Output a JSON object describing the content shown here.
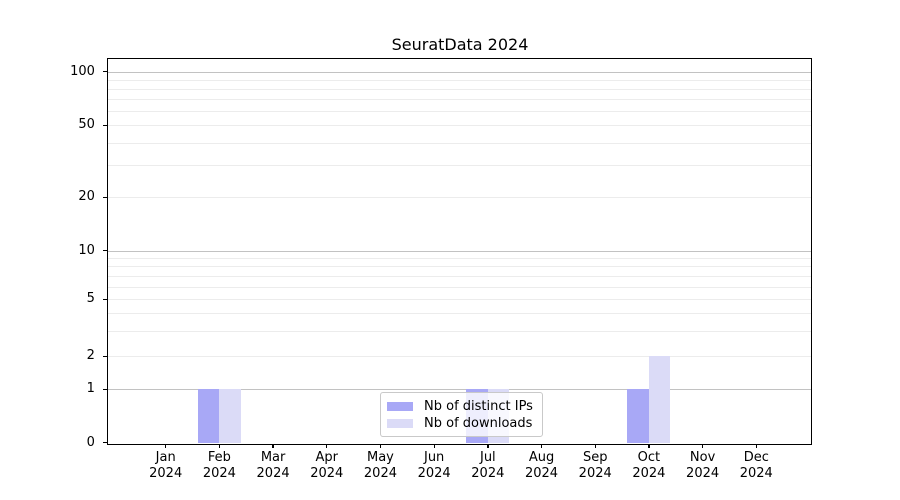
{
  "chart_data": {
    "type": "bar",
    "title": "SeuratData 2024",
    "months": [
      "Jan",
      "Feb",
      "Mar",
      "Apr",
      "May",
      "Jun",
      "Jul",
      "Aug",
      "Sep",
      "Oct",
      "Nov",
      "Dec"
    ],
    "year": "2024",
    "series": [
      {
        "name": "Nb of distinct IPs",
        "color": "#a8a8f6",
        "values": [
          0,
          1,
          0,
          0,
          0,
          0,
          1,
          0,
          0,
          1,
          0,
          0
        ]
      },
      {
        "name": "Nb of downloads",
        "color": "#dbdbf7",
        "values": [
          0,
          1,
          0,
          0,
          0,
          0,
          1,
          0,
          0,
          2,
          0,
          0
        ]
      }
    ],
    "xlabel": "",
    "ylabel": "",
    "yscale": "symlog",
    "ylim": [
      0,
      130
    ],
    "y_ticks": [
      0,
      1,
      2,
      5,
      10,
      20,
      50,
      100
    ],
    "y_tick_labels": [
      "0",
      "1",
      "2",
      "5",
      "10",
      "20",
      "50",
      "100"
    ],
    "y_major_gridlines": [
      1,
      10,
      100
    ],
    "y_minor_gridlines": [
      2,
      3,
      4,
      5,
      6,
      7,
      8,
      9,
      20,
      30,
      40,
      50,
      60,
      70,
      80,
      90
    ],
    "grid": "horizontal",
    "legend_position": "lower center",
    "colors": {
      "background": "#ffffff",
      "major_grid": "#c2c2c2",
      "minor_grid": "#ececec",
      "axis": "#000000",
      "bar_distinct_ips": "#a8a8f6",
      "bar_downloads": "#dbdbf7"
    }
  }
}
